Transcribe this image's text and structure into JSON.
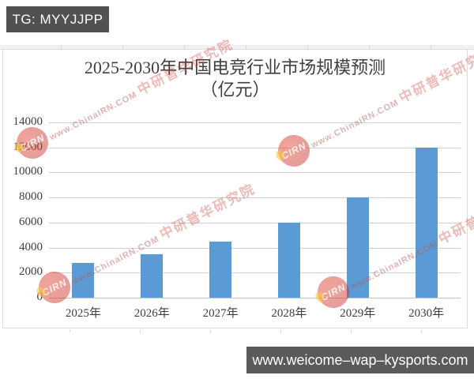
{
  "banners": {
    "top_left": "TG: MYYJJPP",
    "bottom_right": "www.weicome–wap–kysports.com"
  },
  "watermark": {
    "logo_text": "CIRN",
    "site_text": "www.ChinaIRN.COM",
    "org_text": "中研普华研究院"
  },
  "chart_data": {
    "type": "bar",
    "title": "2025-2030年中国电竞行业市场规模预测（亿元）",
    "title_line1": "2025-2030年中国电竞行业市场规模预测",
    "title_line2": "（亿元）",
    "categories": [
      "2025年",
      "2026年",
      "2027年",
      "2028年",
      "2029年",
      "2030年"
    ],
    "values": [
      2800,
      3500,
      4500,
      6000,
      8000,
      12000
    ],
    "xlabel": "",
    "ylabel": "",
    "ylim": [
      0,
      14000
    ],
    "ytick_step": 2000,
    "yticks": [
      0,
      2000,
      4000,
      6000,
      8000,
      10000,
      12000,
      14000
    ],
    "grid": true,
    "legend": "none",
    "bar_color": "#5B9BD5",
    "gridline_color": "#d2d2d2",
    "text_color": "#3f3f3f"
  }
}
